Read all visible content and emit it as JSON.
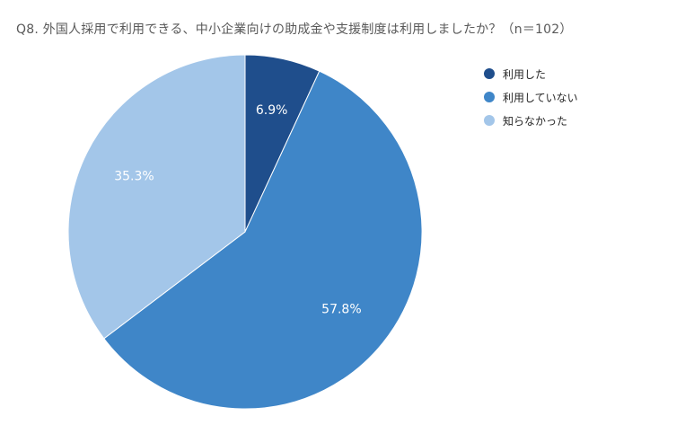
{
  "chart_data": {
    "type": "pie",
    "title": "Q8. 外国人採用で利用できる、中小企業向けの助成金や支援制度は利用しましたか？（n＝102）",
    "categories": [
      "利用した",
      "利用していない",
      "知らなかった"
    ],
    "values": [
      6.9,
      57.8,
      35.3
    ],
    "labels": [
      "6.9%",
      "57.8%",
      "35.3%"
    ],
    "colors": [
      "#1f4e8c",
      "#3f86c8",
      "#a3c6e9"
    ],
    "legend_position": "right",
    "start_angle": "12 o'clock",
    "direction": "clockwise"
  }
}
